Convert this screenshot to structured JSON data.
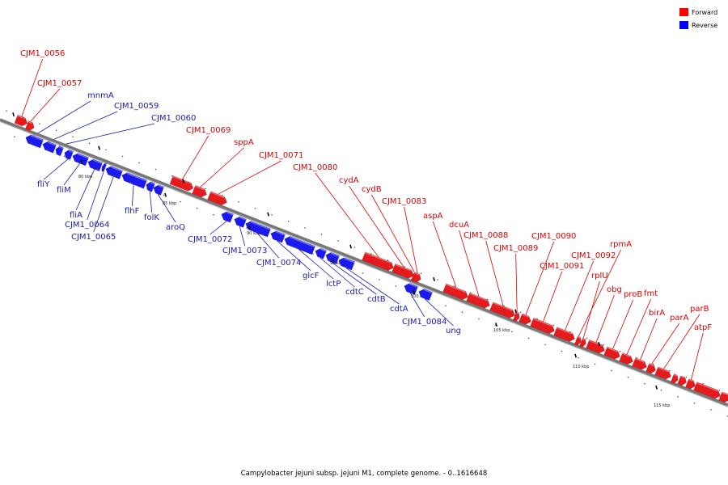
{
  "caption": "Campylobacter jejuni subsp. jejuni M1, complete genome. - 0..1616648",
  "legend": [
    {
      "label": "Forward",
      "color": "#ff0000"
    },
    {
      "label": "Reverse",
      "color": "#0000ff"
    }
  ],
  "colors": {
    "forward": "#e41a1c",
    "reverse": "#1a1aee",
    "forward_label": "#dd0000",
    "reverse_label": "#1a1aaa",
    "backbone": "#666666"
  },
  "axis_ticks": [
    "80 kbp",
    "85 kbp",
    "90 kbp",
    "95 kbp",
    "100 kbp",
    "105 kbp",
    "110 kbp",
    "115 kbp"
  ],
  "genes": {
    "forward": [
      "CJM1_0056",
      "CJM1_0057",
      "CJM1_0069",
      "sppA",
      "CJM1_0071",
      "CJM1_0080",
      "cydA",
      "cydB",
      "CJM1_0083",
      "aspA",
      "dcuA",
      "CJM1_0088",
      "CJM1_0089",
      "CJM1_0090",
      "CJM1_0091",
      "CJM1_0092",
      "rpmA",
      "rplU",
      "obg",
      "proB",
      "fmt",
      "birA",
      "parA",
      "parB",
      "atpF"
    ],
    "reverse": [
      "mnmA",
      "CJM1_0059",
      "CJM1_0060",
      "fliY",
      "fliM",
      "fliA",
      "CJM1_0064",
      "CJM1_0065",
      "flhF",
      "folK",
      "aroQ",
      "CJM1_0072",
      "CJM1_0073",
      "CJM1_0074",
      "glcF",
      "lctP",
      "cdtC",
      "cdtB",
      "cdtA",
      "CJM1_0084",
      "ung"
    ]
  }
}
